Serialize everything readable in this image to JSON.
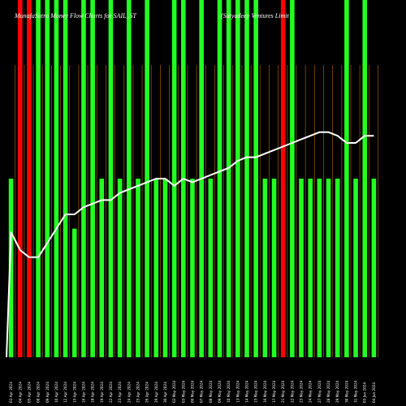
{
  "chart_data": {
    "type": "bar",
    "title": "MunafaSutra Money Flow Charts for SAIL_ST",
    "subtitle": "(Satyadeep Ventures Limit",
    "ylim": [
      0,
      100
    ],
    "grid": true,
    "colors": {
      "background": "#000000",
      "grid": "#8a5200",
      "up": "#22ff22",
      "down": "#ff0000",
      "line": "#ffffff"
    },
    "categories": [
      "03 Apr 2024",
      "04 Apr 2024",
      "05 Apr 2024",
      "08 Apr 2024",
      "09 Apr 2024",
      "10 Apr 2024",
      "12 Apr 2024",
      "15 Apr 2024",
      "16 Apr 2024",
      "18 Apr 2024",
      "19 Apr 2024",
      "22 Apr 2024",
      "23 Apr 2024",
      "24 Apr 2024",
      "25 Apr 2024",
      "26 Apr 2024",
      "29 Apr 2024",
      "30 Apr 2024",
      "02 May 2024",
      "03 May 2024",
      "06 May 2024",
      "07 May 2024",
      "08 May 2024",
      "09 May 2024",
      "10 May 2024",
      "13 May 2024",
      "14 May 2024",
      "15 May 2024",
      "16 May 2024",
      "17 May 2024",
      "21 May 2024",
      "22 May 2024",
      "23 May 2024",
      "24 May 2024",
      "27 May 2024",
      "28 May 2024",
      "29 May 2024",
      "30 May 2024",
      "31 May 2024",
      "03 Jun 2024",
      "04 Jun 2024"
    ],
    "series": [
      {
        "type": "bar",
        "values": [
          50,
          100,
          100,
          100,
          100,
          100,
          100,
          36,
          100,
          100,
          50,
          100,
          50,
          100,
          50,
          100,
          50,
          50,
          100,
          100,
          50,
          100,
          50,
          100,
          100,
          100,
          100,
          100,
          50,
          50,
          100,
          100,
          50,
          50,
          50,
          50,
          50,
          100,
          50,
          100,
          50
        ],
        "colors": [
          "green",
          "red",
          "red",
          "green",
          "green",
          "green",
          "green",
          "green",
          "green",
          "green",
          "green",
          "green",
          "green",
          "green",
          "green",
          "green",
          "green",
          "green",
          "green",
          "green",
          "green",
          "green",
          "green",
          "green",
          "green",
          "green",
          "green",
          "green",
          "green",
          "green",
          "red",
          "green",
          "green",
          "green",
          "green",
          "green",
          "green",
          "green",
          "green",
          "green",
          "green"
        ]
      },
      {
        "type": "line",
        "values": [
          35,
          30,
          28,
          28,
          32,
          36,
          40,
          40,
          42,
          43,
          44,
          44,
          46,
          47,
          48,
          49,
          50,
          50,
          48,
          50,
          49,
          50,
          51,
          52,
          53,
          55,
          56,
          56,
          57,
          58,
          59,
          60,
          61,
          62,
          63,
          63,
          62,
          60,
          60,
          62,
          62
        ]
      }
    ]
  }
}
